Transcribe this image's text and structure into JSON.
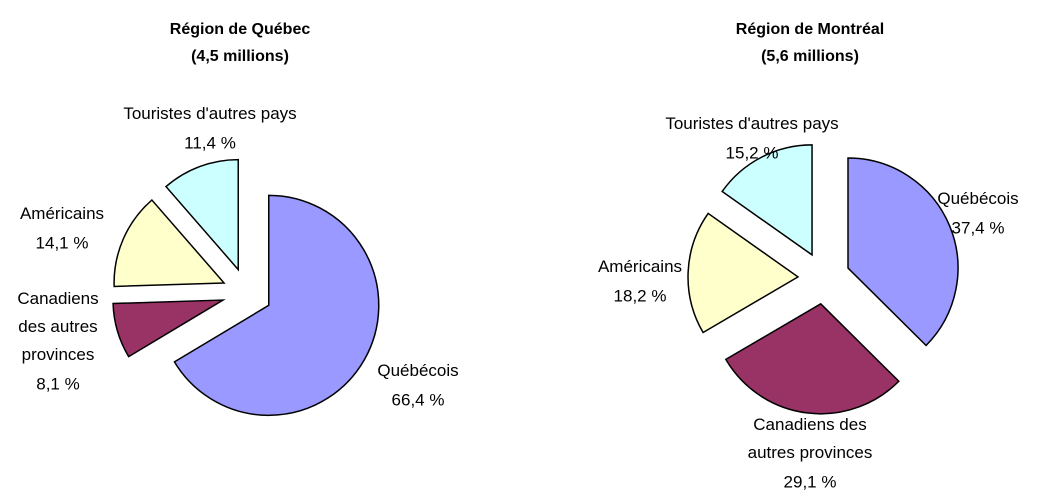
{
  "chart_data": [
    {
      "type": "pie",
      "title": "Région de Québec",
      "subtitle": "(4,5 millions)",
      "categories": [
        "Québécois",
        "Canadiens des autres provinces",
        "Américains",
        "Touristes d'autres pays"
      ],
      "values": [
        66.4,
        8.1,
        14.1,
        11.4
      ],
      "value_labels": [
        "66,4 %",
        "8,1 %",
        "14,1 %",
        "11,4 %"
      ],
      "colors": [
        "#9999ff",
        "#993366",
        "#ffffcc",
        "#ccffff"
      ]
    },
    {
      "type": "pie",
      "title": "Région de Montréal",
      "subtitle": "(5,6 millions)",
      "categories": [
        "Québécois",
        "Canadiens des autres provinces",
        "Américains",
        "Touristes d'autres pays"
      ],
      "values": [
        37.4,
        29.1,
        18.2,
        15.2
      ],
      "value_labels": [
        "37,4 %",
        "29,1 %",
        "18,2 %",
        "15,2 %"
      ],
      "colors": [
        "#9999ff",
        "#993366",
        "#ffffcc",
        "#ccffff"
      ]
    }
  ]
}
